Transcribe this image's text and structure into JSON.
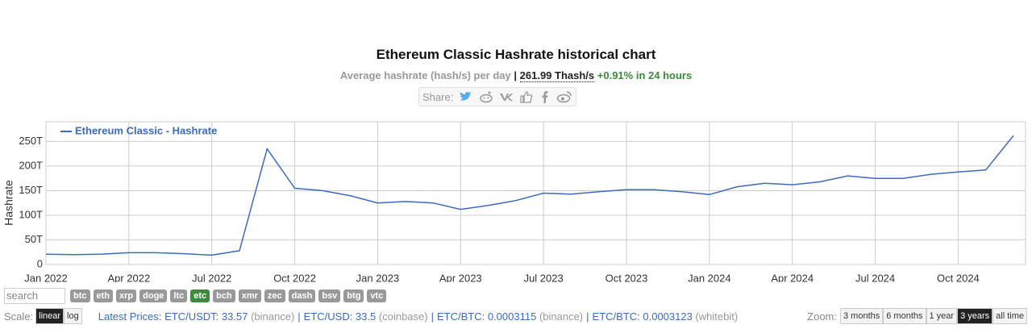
{
  "chart_data": {
    "type": "line",
    "title": "Ethereum Classic Hashrate historical chart",
    "subtitle": {
      "text": "Average hashrate (hash/s) per day",
      "separator": "|",
      "rate": "261.99 Thash/s",
      "change": "+0.91% in 24 hours"
    },
    "y_label": "Hashrate",
    "x": [
      "2022-01",
      "2022-02",
      "2022-03",
      "2022-04",
      "2022-05",
      "2022-06",
      "2022-07",
      "2022-08",
      "2022-09",
      "2022-10",
      "2022-11",
      "2022-12",
      "2023-01",
      "2023-02",
      "2023-03",
      "2023-04",
      "2023-05",
      "2023-06",
      "2023-07",
      "2023-08",
      "2023-09",
      "2023-10",
      "2023-11",
      "2023-12",
      "2024-01",
      "2024-02",
      "2024-03",
      "2024-04",
      "2024-05",
      "2024-06",
      "2024-07",
      "2024-08",
      "2024-09",
      "2024-10",
      "2024-11",
      "2024-12"
    ],
    "series": [
      {
        "name": "Ethereum Classic - Hashrate",
        "color": "#3a6bc4",
        "values": [
          21,
          20,
          21,
          24,
          24,
          22,
          19,
          28,
          235,
          155,
          150,
          140,
          125,
          128,
          125,
          112,
          120,
          130,
          145,
          143,
          148,
          152,
          152,
          148,
          142,
          158,
          165,
          162,
          168,
          180,
          175,
          175,
          183,
          188,
          192,
          262
        ]
      }
    ],
    "xlim": [
      "2022-01",
      "2024-12"
    ],
    "xticks": [
      {
        "value": "2022-01",
        "label": "Jan 2022"
      },
      {
        "value": "2022-04",
        "label": "Apr 2022"
      },
      {
        "value": "2022-07",
        "label": "Jul 2022"
      },
      {
        "value": "2022-10",
        "label": "Oct 2022"
      },
      {
        "value": "2023-01",
        "label": "Jan 2023"
      },
      {
        "value": "2023-04",
        "label": "Apr 2023"
      },
      {
        "value": "2023-07",
        "label": "Jul 2023"
      },
      {
        "value": "2023-10",
        "label": "Oct 2023"
      },
      {
        "value": "2024-01",
        "label": "Jan 2024"
      },
      {
        "value": "2024-04",
        "label": "Apr 2024"
      },
      {
        "value": "2024-07",
        "label": "Jul 2024"
      },
      {
        "value": "2024-10",
        "label": "Oct 2024"
      }
    ],
    "ylim": [
      0,
      290
    ],
    "yticks": [
      0,
      {
        "value": 50,
        "label": "50T"
      },
      {
        "value": 100,
        "label": "100T"
      },
      {
        "value": 150,
        "label": "150T"
      },
      {
        "value": 200,
        "label": "200T"
      },
      {
        "value": 250,
        "label": "250T"
      }
    ],
    "grid": true,
    "legend": "top-left"
  },
  "ui": {
    "share_label": "Share:",
    "search_placeholder": "search",
    "coins": [
      "btc",
      "eth",
      "xrp",
      "doge",
      "ltc",
      "etc",
      "bch",
      "xmr",
      "zec",
      "dash",
      "bsv",
      "btg",
      "vtc"
    ],
    "selected_coin": 5,
    "scale_label": "Scale:",
    "scales": [
      "linear",
      "log"
    ],
    "selected_scale": 0,
    "prices_label": "Latest Prices:",
    "price_separator": "|",
    "prices": [
      {
        "label": "ETC/USDT: 33.57",
        "source": "(binance)"
      },
      {
        "label": "ETC/USD: 33.5",
        "source": "(coinbase)"
      },
      {
        "label": "ETC/BTC: 0.0003115",
        "source": "(binance)"
      },
      {
        "label": "ETC/BTC: 0.0003123",
        "source": "(whitebit)"
      }
    ],
    "zoom_label": "Zoom:",
    "zooms": [
      "3 months",
      "6 months",
      "1 year",
      "3 years",
      "all time"
    ],
    "selected_zoom": 3
  }
}
